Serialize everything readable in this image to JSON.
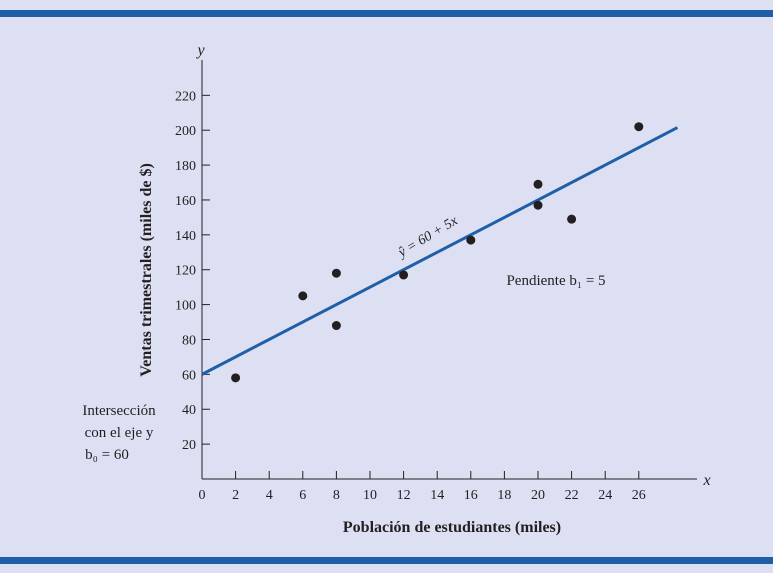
{
  "colors": {
    "background": "#dde0f3",
    "frame": "#1f5fa8",
    "axis": "#231f20",
    "line": "#1f5fa8",
    "point": "#231f20"
  },
  "chart_data": {
    "type": "scatter",
    "title": "",
    "xlabel": "Población de estudiantes (miles)",
    "ylabel": "Ventas trimestrales (miles de $)",
    "x_var": "x",
    "y_var": "y",
    "xlim": [
      0,
      30
    ],
    "ylim": [
      0,
      240
    ],
    "x_ticks": [
      0,
      2,
      4,
      6,
      8,
      10,
      12,
      14,
      16,
      18,
      20,
      22,
      24,
      26
    ],
    "y_ticks": [
      20,
      40,
      60,
      80,
      100,
      120,
      140,
      160,
      180,
      200,
      220
    ],
    "points": [
      {
        "x": 2,
        "y": 58
      },
      {
        "x": 6,
        "y": 105
      },
      {
        "x": 8,
        "y": 88
      },
      {
        "x": 8,
        "y": 118
      },
      {
        "x": 12,
        "y": 117
      },
      {
        "x": 16,
        "y": 137
      },
      {
        "x": 20,
        "y": 157
      },
      {
        "x": 20,
        "y": 169
      },
      {
        "x": 22,
        "y": 149
      },
      {
        "x": 26,
        "y": 202
      }
    ],
    "regression_line": {
      "intercept": 60,
      "slope": 5,
      "x_range": [
        0,
        28.3
      ]
    },
    "annotations": {
      "equation": "ŷ = 60 + 5x",
      "slope": "Pendiente b₁ = 5",
      "intercept_lines": [
        "Intersección",
        "con el eje y",
        "b₀ = 60"
      ]
    }
  }
}
